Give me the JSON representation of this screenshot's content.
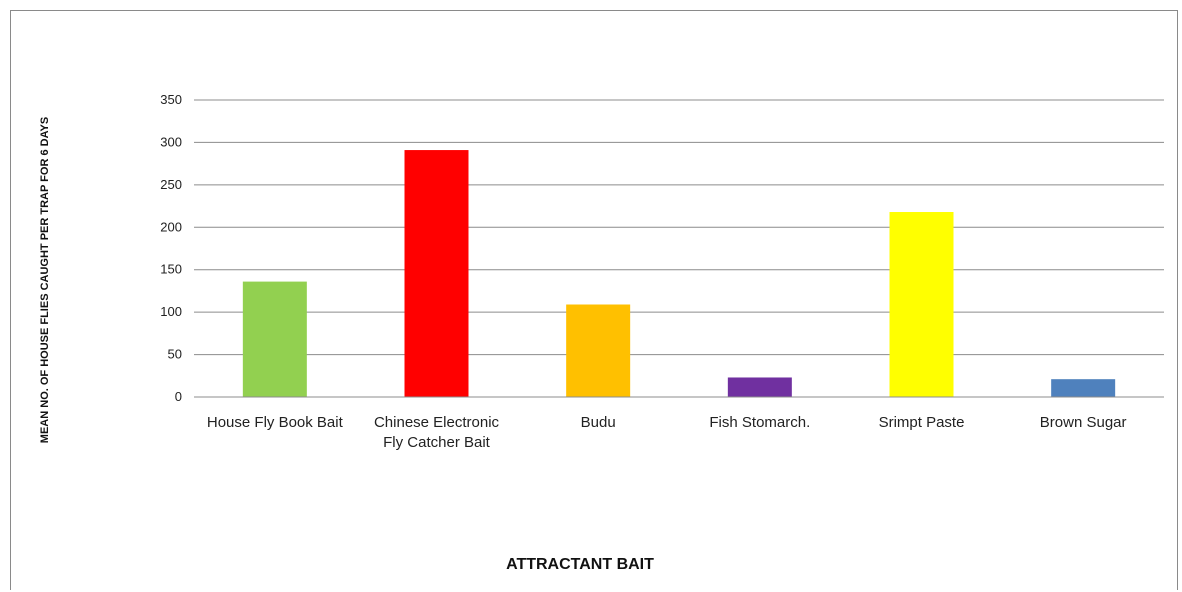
{
  "chart_data": {
    "type": "bar",
    "title": "",
    "xlabel": "ATTRACTANT BAIT",
    "ylabel": "MEAN NO. OF HOUSE FLIES CAUGHT PER TRAP FOR 6 DAYS",
    "ylim": [
      0,
      350
    ],
    "yticks": [
      0,
      50,
      100,
      150,
      200,
      250,
      300,
      350
    ],
    "grid": true,
    "legend": "none",
    "categories": [
      "House Fly Book Bait",
      "Chinese Electronic Fly Catcher Bait",
      "Budu",
      "Fish Stomarch.",
      "Srimpt Paste",
      "Brown Sugar"
    ],
    "category_lines": [
      [
        "House Fly Book Bait"
      ],
      [
        "Chinese Electronic",
        "Fly Catcher Bait"
      ],
      [
        "Budu"
      ],
      [
        "Fish Stomarch."
      ],
      [
        "Srimpt Paste"
      ],
      [
        "Brown Sugar"
      ]
    ],
    "values": [
      136,
      291,
      109,
      23,
      218,
      21
    ],
    "colors": [
      "#92d050",
      "#ff0000",
      "#ffc000",
      "#7030a0",
      "#ffff00",
      "#4f81bd"
    ]
  }
}
